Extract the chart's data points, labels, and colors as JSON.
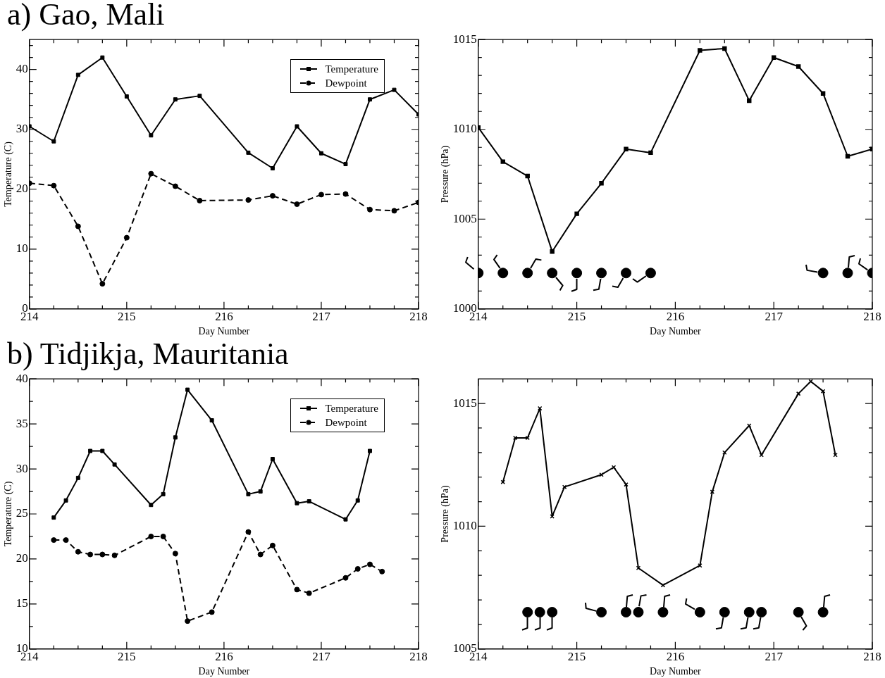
{
  "chart_data": [
    {
      "type": "line",
      "title": "a) Gao, Mali",
      "xlabel": "Day Number",
      "ylabel": "Temperature (C)",
      "xlim": [
        214,
        218
      ],
      "xticks": [
        214,
        {
          "value": 214.25,
          "label": null
        },
        {
          "value": 214.5,
          "label": null
        },
        {
          "value": 214.75,
          "label": null
        },
        215,
        {
          "value": 215.25,
          "label": null
        },
        {
          "value": 215.5,
          "label": null
        },
        {
          "value": 215.75,
          "label": null
        },
        216,
        {
          "value": 216.25,
          "label": null
        },
        {
          "value": 216.5,
          "label": null
        },
        {
          "value": 216.75,
          "label": null
        },
        217,
        {
          "value": 217.25,
          "label": null
        },
        {
          "value": 217.5,
          "label": null
        },
        {
          "value": 217.75,
          "label": null
        },
        218
      ],
      "ylim": [
        0,
        45
      ],
      "yticks": [
        0,
        {
          "value": 2,
          "label": null
        },
        {
          "value": 4,
          "label": null
        },
        {
          "value": 6,
          "label": null
        },
        {
          "value": 8,
          "label": null
        },
        10,
        {
          "value": 12,
          "label": null
        },
        {
          "value": 14,
          "label": null
        },
        {
          "value": 16,
          "label": null
        },
        {
          "value": 18,
          "label": null
        },
        20,
        {
          "value": 22,
          "label": null
        },
        {
          "value": 24,
          "label": null
        },
        {
          "value": 26,
          "label": null
        },
        {
          "value": 28,
          "label": null
        },
        30,
        {
          "value": 32,
          "label": null
        },
        {
          "value": 34,
          "label": null
        },
        {
          "value": 36,
          "label": null
        },
        {
          "value": 38,
          "label": null
        },
        40,
        {
          "value": 42,
          "label": null
        },
        {
          "value": 44,
          "label": null
        }
      ],
      "grid": false,
      "legend": "top right",
      "x": [
        214,
        214.25,
        214.5,
        214.75,
        215,
        215.25,
        215.5,
        215.75,
        216.25,
        216.5,
        216.75,
        217,
        217.25,
        217.5,
        217.75,
        218
      ],
      "series": [
        {
          "name": "Temperature",
          "color": "#000000",
          "marker": "square",
          "line_style": "solid",
          "values": [
            30.5,
            28,
            39.1,
            42,
            35.5,
            29,
            35,
            35.6,
            26.1,
            23.5,
            30.5,
            26,
            24.2,
            35,
            36.6,
            32.5
          ]
        },
        {
          "name": "Dewpoint",
          "color": "#000000",
          "marker": "circle",
          "line_style": "dashed",
          "values": [
            21,
            20.6,
            13.8,
            4.2,
            11.9,
            22.6,
            20.5,
            18.1,
            18.2,
            18.9,
            17.5,
            19.1,
            19.2,
            16.6,
            16.4,
            17.8
          ]
        }
      ]
    },
    {
      "type": "line",
      "xlabel": "Day Number",
      "ylabel": "Pressure (hPa)",
      "xlim": [
        214,
        218
      ],
      "xticks": [
        214,
        {
          "value": 214.25,
          "label": null
        },
        {
          "value": 214.5,
          "label": null
        },
        {
          "value": 214.75,
          "label": null
        },
        215,
        {
          "value": 215.25,
          "label": null
        },
        {
          "value": 215.5,
          "label": null
        },
        {
          "value": 215.75,
          "label": null
        },
        216,
        {
          "value": 216.25,
          "label": null
        },
        {
          "value": 216.5,
          "label": null
        },
        {
          "value": 216.75,
          "label": null
        },
        217,
        {
          "value": 217.25,
          "label": null
        },
        {
          "value": 217.5,
          "label": null
        },
        {
          "value": 217.75,
          "label": null
        },
        218
      ],
      "ylim": [
        1000,
        1015
      ],
      "yticks": [
        1000,
        {
          "value": 1001,
          "label": null
        },
        {
          "value": 1002,
          "label": null
        },
        {
          "value": 1003,
          "label": null
        },
        {
          "value": 1004,
          "label": null
        },
        1005,
        {
          "value": 1006,
          "label": null
        },
        {
          "value": 1007,
          "label": null
        },
        {
          "value": 1008,
          "label": null
        },
        {
          "value": 1009,
          "label": null
        },
        1010,
        {
          "value": 1011,
          "label": null
        },
        {
          "value": 1012,
          "label": null
        },
        {
          "value": 1013,
          "label": null
        },
        {
          "value": 1014,
          "label": null
        },
        1015
      ],
      "grid": false,
      "x": [
        214,
        214.25,
        214.5,
        214.75,
        215,
        215.25,
        215.5,
        215.75,
        216.25,
        216.5,
        216.75,
        217,
        217.25,
        217.5,
        217.75,
        218
      ],
      "series": [
        {
          "color": "#000000",
          "marker": "square",
          "line_style": "solid",
          "values": [
            1010.1,
            1008.2,
            1007.4,
            1003.2,
            1005.3,
            1007.0,
            1008.9,
            1008.7,
            1014.4,
            1014.5,
            1011.6,
            1014.0,
            1013.5,
            1012.0,
            1008.5,
            1008.9
          ]
        },
        {
          "type": "scatter",
          "color": "#000000",
          "marker": "circle",
          "x": [
            214,
            214.25,
            214.5,
            214.75,
            215,
            215.25,
            215.5,
            215.75,
            217.5,
            217.75,
            218
          ],
          "values": [
            1002,
            1002,
            1002,
            1002,
            1002,
            1002,
            1002,
            1002,
            1002,
            1002,
            1002
          ]
        }
      ]
    },
    {
      "type": "line",
      "title": "b) Tidjikja, Mauritania",
      "xlabel": "Day Number",
      "ylabel": "Temperature (C)",
      "xlim": [
        214,
        218
      ],
      "xticks": [
        214,
        {
          "value": 214.25,
          "label": null
        },
        {
          "value": 214.5,
          "label": null
        },
        {
          "value": 214.75,
          "label": null
        },
        215,
        {
          "value": 215.25,
          "label": null
        },
        {
          "value": 215.5,
          "label": null
        },
        {
          "value": 215.75,
          "label": null
        },
        216,
        {
          "value": 216.25,
          "label": null
        },
        {
          "value": 216.5,
          "label": null
        },
        {
          "value": 216.75,
          "label": null
        },
        217,
        {
          "value": 217.25,
          "label": null
        },
        {
          "value": 217.5,
          "label": null
        },
        {
          "value": 217.75,
          "label": null
        },
        218
      ],
      "ylim": [
        10,
        40
      ],
      "yticks": [
        10,
        {
          "value": 12.5,
          "label": null
        },
        15,
        {
          "value": 17.5,
          "label": null
        },
        20,
        {
          "value": 22.5,
          "label": null
        },
        25,
        {
          "value": 27.5,
          "label": null
        },
        30,
        {
          "value": 32.5,
          "label": null
        },
        35,
        {
          "value": 37.5,
          "label": null
        },
        40
      ],
      "grid": false,
      "legend": "top right",
      "x": [
        214.25,
        214.375,
        214.5,
        214.625,
        214.75,
        214.875,
        215.25,
        215.375,
        215.5,
        215.625,
        215.875,
        216.25,
        216.375,
        216.5,
        216.75,
        216.875,
        217.25,
        217.375,
        217.5,
        217.625
      ],
      "series": [
        {
          "name": "Temperature",
          "color": "#000000",
          "marker": "square",
          "line_style": "solid",
          "values": [
            24.6,
            26.5,
            29,
            32,
            32,
            30.5,
            26,
            27.2,
            33.5,
            38.8,
            35.4,
            27.2,
            27.5,
            31.1,
            26.2,
            26.4,
            24.4,
            26.5,
            32,
            null
          ]
        },
        {
          "name": "Dewpoint",
          "color": "#000000",
          "marker": "circle",
          "line_style": "dashed",
          "values": [
            22.1,
            22.1,
            20.8,
            20.5,
            20.5,
            20.4,
            22.5,
            22.5,
            20.6,
            13.1,
            14.1,
            23,
            20.5,
            21.5,
            16.6,
            16.2,
            17.9,
            18.9,
            19.4,
            18.6
          ]
        }
      ]
    },
    {
      "type": "line",
      "xlabel": "Day Number",
      "ylabel": "Pressure (hPa)",
      "xlim": [
        214,
        218
      ],
      "xticks": [
        214,
        {
          "value": 214.25,
          "label": null
        },
        {
          "value": 214.5,
          "label": null
        },
        {
          "value": 214.75,
          "label": null
        },
        215,
        {
          "value": 215.25,
          "label": null
        },
        {
          "value": 215.5,
          "label": null
        },
        {
          "value": 215.75,
          "label": null
        },
        216,
        {
          "value": 216.25,
          "label": null
        },
        {
          "value": 216.5,
          "label": null
        },
        {
          "value": 216.75,
          "label": null
        },
        217,
        {
          "value": 217.25,
          "label": null
        },
        {
          "value": 217.5,
          "label": null
        },
        {
          "value": 217.75,
          "label": null
        },
        218
      ],
      "ylim": [
        1005,
        1016
      ],
      "yticks": [
        1005,
        {
          "value": 1006,
          "label": null
        },
        {
          "value": 1007,
          "label": null
        },
        {
          "value": 1008,
          "label": null
        },
        {
          "value": 1009,
          "label": null
        },
        1010,
        {
          "value": 1011,
          "label": null
        },
        {
          "value": 1012,
          "label": null
        },
        {
          "value": 1013,
          "label": null
        },
        {
          "value": 1014,
          "label": null
        },
        1015
      ],
      "grid": false,
      "x": [
        214.25,
        214.375,
        214.5,
        214.625,
        214.75,
        214.875,
        215.25,
        215.375,
        215.5,
        215.625,
        215.875,
        216.25,
        216.375,
        216.5,
        216.75,
        216.875,
        217.25,
        217.375,
        217.5,
        217.625
      ],
      "series": [
        {
          "color": "#000000",
          "marker": "cross",
          "line_style": "solid",
          "values": [
            1011.8,
            1013.6,
            1013.6,
            1014.8,
            1010.4,
            1011.6,
            1012.1,
            1012.4,
            1011.7,
            1008.3,
            1007.6,
            1008.4,
            1011.4,
            1013.0,
            1014.1,
            1012.9,
            1015.4,
            1015.9,
            1015.5,
            1012.9
          ]
        },
        {
          "type": "scatter",
          "color": "#000000",
          "marker": "circle",
          "x": [
            214.5,
            214.625,
            214.75,
            215.25,
            215.5,
            215.625,
            215.875,
            216.25,
            216.5,
            216.75,
            216.875,
            217.25,
            217.5
          ],
          "values": [
            1006.5,
            1006.5,
            1006.5,
            1006.5,
            1006.5,
            1006.5,
            1006.5,
            1006.5,
            1006.5,
            1006.5,
            1006.5,
            1006.5,
            1006.5
          ]
        }
      ]
    }
  ]
}
